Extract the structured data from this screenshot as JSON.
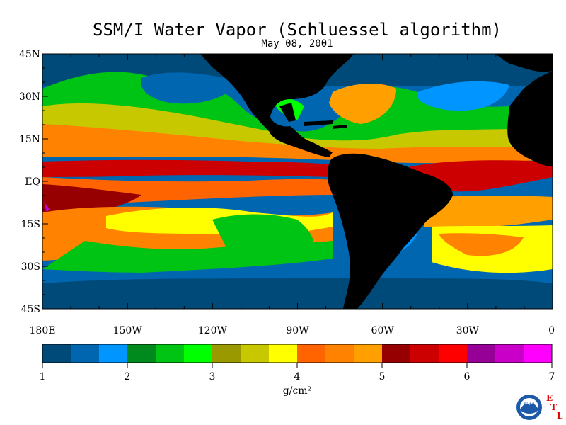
{
  "title": "SSM/I Water Vapor (Schluessel algorithm)",
  "subtitle": "May 08, 2001",
  "lat_labels": [
    "45N",
    "30N",
    "15N",
    "EQ",
    "15S",
    "30S",
    "45S"
  ],
  "lon_labels": [
    "180E",
    "150W",
    "120W",
    "90W",
    "60W",
    "30W",
    "0"
  ],
  "colorbar": {
    "colors": [
      "#004a7a",
      "#0066b0",
      "#0095ff",
      "#008a1e",
      "#00c414",
      "#00ff00",
      "#9a9a00",
      "#c8c800",
      "#ffff00",
      "#ff6400",
      "#ff8200",
      "#ffa000",
      "#960000",
      "#cc0000",
      "#ff0000",
      "#960096",
      "#c800c8",
      "#ff00ff"
    ],
    "tick_labels": [
      "1",
      "2",
      "3",
      "4",
      "5",
      "6",
      "7"
    ],
    "unit": "g/cm²"
  },
  "colors": {
    "land": "#000000",
    "frame": "#000000"
  },
  "logo": {
    "noaa_text": "NOAA",
    "etl_letters": [
      "E",
      "T",
      "L"
    ]
  }
}
